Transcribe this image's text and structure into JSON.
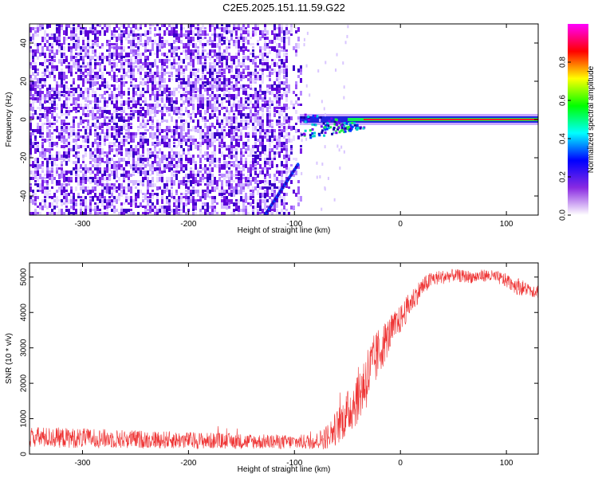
{
  "title": "C2E5.2025.151.11.59.G22",
  "chart_data": [
    {
      "type": "heatmap",
      "xlabel": "Height of straight line (km)",
      "ylabel": "Frequency (Hz)",
      "xlim": [
        -350,
        130
      ],
      "ylim": [
        -50,
        50
      ],
      "x_ticks": [
        -300,
        -200,
        -100,
        0,
        100
      ],
      "x_tick_labels": [
        "-300",
        "-200",
        "-100",
        "0",
        "100"
      ],
      "y_ticks": [
        -40,
        -20,
        0,
        20,
        40
      ],
      "y_tick_labels": [
        "-40",
        "-20",
        "0",
        "20",
        "40"
      ],
      "grid": false,
      "colorbar": {
        "label": "Normalized spectral amplitude",
        "range": [
          0,
          1
        ],
        "ticks": [
          0.0,
          0.2,
          0.4,
          0.6,
          0.8
        ],
        "tick_labels": [
          "0.0",
          "0.2",
          "0.4",
          "0.6",
          "0.8"
        ],
        "colors": [
          "#ffffff",
          "#8a2be2",
          "#0000ff",
          "#00ffff",
          "#00ff00",
          "#ffff00",
          "#ff0000",
          "#ff00ff"
        ]
      },
      "features": {
        "noise_region_x": [
          -350,
          -100
        ],
        "signal_line_x": [
          -95,
          130
        ],
        "signal_line_frequency": 0
      }
    },
    {
      "type": "line",
      "xlabel": "Height of straight line (km)",
      "ylabel": "SNR (10 * v/v)",
      "xlim": [
        -350,
        130
      ],
      "ylim": [
        0,
        5400
      ],
      "x_ticks": [
        -300,
        -200,
        -100,
        0,
        100
      ],
      "x_tick_labels": [
        "-300",
        "-200",
        "-100",
        "0",
        "100"
      ],
      "y_ticks": [
        0,
        1000,
        2000,
        3000,
        4000,
        5000
      ],
      "y_tick_labels": [
        "0",
        "1000",
        "2000",
        "3000",
        "4000",
        "5000"
      ],
      "grid": false,
      "series_color": "#ee3333",
      "x": [
        -350,
        -300,
        -250,
        -200,
        -150,
        -100,
        -80,
        -70,
        -60,
        -50,
        -40,
        -30,
        -20,
        -10,
        0,
        10,
        20,
        30,
        40,
        50,
        60,
        70,
        80,
        90,
        100,
        110,
        120,
        130
      ],
      "values": [
        480,
        450,
        420,
        390,
        360,
        340,
        360,
        480,
        750,
        1150,
        1650,
        2250,
        2900,
        3400,
        3800,
        4300,
        4700,
        4950,
        5000,
        5050,
        5020,
        5000,
        5050,
        5000,
        4900,
        4750,
        4650,
        4600
      ],
      "noise_amplitude": [
        300,
        280,
        260,
        240,
        220,
        200,
        230,
        350,
        500,
        650,
        800,
        900,
        700,
        500,
        400,
        350,
        280,
        220,
        200,
        180,
        180,
        180,
        180,
        180,
        200,
        250,
        200,
        200
      ]
    }
  ]
}
